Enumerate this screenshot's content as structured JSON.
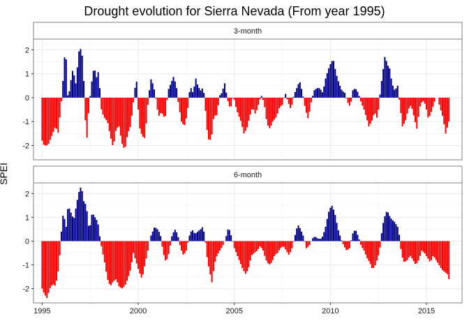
{
  "chart_data": {
    "type": "bar",
    "title": "Drought evolution for Sierra Nevada (From year 1995)",
    "xlabel": "",
    "ylabel": "SPEI",
    "xlim": [
      1994.55,
      2016.85
    ],
    "x_ticks": [
      1995,
      2000,
      2005,
      2010,
      2015
    ],
    "x_tick_labels": [
      "1995",
      "2000",
      "2005",
      "2010",
      "2015"
    ],
    "y_ticks": [
      -2,
      -1,
      0,
      1,
      2
    ],
    "y_tick_labels": [
      "-2",
      "-1",
      "0",
      "1",
      "2"
    ],
    "grid": true,
    "legend": "none",
    "colors": {
      "positive": "#00008B",
      "negative": "#FF0000"
    },
    "panels": [
      {
        "label": "3-month",
        "ylim": [
          -2.6,
          2.45
        ],
        "anchors": [
          [
            1995.0,
            -1.8
          ],
          [
            1995.1,
            -2.0
          ],
          [
            1995.3,
            -2.0
          ],
          [
            1995.5,
            -1.6
          ],
          [
            1995.7,
            -1.2
          ],
          [
            1995.85,
            -1.5
          ],
          [
            1995.95,
            -0.5
          ],
          [
            1996.05,
            0.2
          ],
          [
            1996.15,
            1.7
          ],
          [
            1996.25,
            1.6
          ],
          [
            1996.35,
            -0.2
          ],
          [
            1996.45,
            0.5
          ],
          [
            1996.6,
            1.2
          ],
          [
            1996.75,
            0.6
          ],
          [
            1996.95,
            2.2
          ],
          [
            1997.1,
            1.7
          ],
          [
            1997.2,
            0.2
          ],
          [
            1997.3,
            -2.1
          ],
          [
            1997.4,
            -0.8
          ],
          [
            1997.55,
            0.5
          ],
          [
            1997.7,
            1.3
          ],
          [
            1997.85,
            0.8
          ],
          [
            1997.95,
            1.2
          ],
          [
            1998.05,
            -0.4
          ],
          [
            1998.2,
            -0.8
          ],
          [
            1998.4,
            -1.0
          ],
          [
            1998.55,
            -1.6
          ],
          [
            1998.7,
            -2.1
          ],
          [
            1998.85,
            -1.3
          ],
          [
            1999.0,
            -1.2
          ],
          [
            1999.15,
            -1.9
          ],
          [
            1999.3,
            -2.2
          ],
          [
            1999.45,
            -1.5
          ],
          [
            1999.6,
            -1.2
          ],
          [
            1999.75,
            -0.2
          ],
          [
            1999.9,
            0.9
          ],
          [
            2000.05,
            -1.2
          ],
          [
            2000.2,
            -1.6
          ],
          [
            2000.35,
            -1.7
          ],
          [
            2000.5,
            -0.3
          ],
          [
            2000.65,
            0.8
          ],
          [
            2000.8,
            0.5
          ],
          [
            2000.95,
            -0.2
          ],
          [
            2001.05,
            -0.8
          ],
          [
            2001.2,
            -0.6
          ],
          [
            2001.4,
            -0.9
          ],
          [
            2001.55,
            0.3
          ],
          [
            2001.7,
            0.6
          ],
          [
            2001.85,
            0.9
          ],
          [
            2002.0,
            0.4
          ],
          [
            2002.1,
            -0.3
          ],
          [
            2002.25,
            -1.0
          ],
          [
            2002.4,
            -1.2
          ],
          [
            2002.55,
            -0.7
          ],
          [
            2002.7,
            0.5
          ],
          [
            2002.85,
            0.2
          ],
          [
            2003.0,
            0.8
          ],
          [
            2003.1,
            0.5
          ],
          [
            2003.25,
            0.3
          ],
          [
            2003.35,
            0.4
          ],
          [
            2003.45,
            0.1
          ],
          [
            2003.55,
            -1.2
          ],
          [
            2003.7,
            -1.9
          ],
          [
            2003.85,
            -1.5
          ],
          [
            2003.95,
            -0.6
          ],
          [
            2004.05,
            -0.9
          ],
          [
            2004.15,
            -0.4
          ],
          [
            2004.25,
            0.1
          ],
          [
            2004.35,
            0.2
          ],
          [
            2004.5,
            0.6
          ],
          [
            2004.65,
            -0.1
          ],
          [
            2004.8,
            -0.5
          ],
          [
            2004.95,
            0.1
          ],
          [
            2005.05,
            -0.3
          ],
          [
            2005.2,
            -0.7
          ],
          [
            2005.35,
            -1.0
          ],
          [
            2005.5,
            -1.5
          ],
          [
            2005.65,
            -1.3
          ],
          [
            2005.8,
            -0.8
          ],
          [
            2005.95,
            -0.4
          ],
          [
            2006.1,
            -0.7
          ],
          [
            2006.25,
            -0.3
          ],
          [
            2006.4,
            0.1
          ],
          [
            2006.55,
            -0.2
          ],
          [
            2006.7,
            -1.1
          ],
          [
            2006.85,
            -1.3
          ],
          [
            2007.0,
            -1.0
          ],
          [
            2007.2,
            -0.8
          ],
          [
            2007.35,
            -0.4
          ],
          [
            2007.5,
            -0.3
          ],
          [
            2007.65,
            0.2
          ],
          [
            2007.8,
            -0.2
          ],
          [
            2007.95,
            -0.5
          ],
          [
            2008.1,
            0.1
          ],
          [
            2008.25,
            0.4
          ],
          [
            2008.4,
            0.7
          ],
          [
            2008.55,
            0.2
          ],
          [
            2008.7,
            -0.5
          ],
          [
            2008.85,
            -0.9
          ],
          [
            2009.0,
            -0.2
          ],
          [
            2009.15,
            0.3
          ],
          [
            2009.3,
            0.4
          ],
          [
            2009.45,
            0.4
          ],
          [
            2009.6,
            0.2
          ],
          [
            2009.75,
            0.8
          ],
          [
            2009.9,
            1.2
          ],
          [
            2010.05,
            1.5
          ],
          [
            2010.15,
            1.6
          ],
          [
            2010.3,
            1.0
          ],
          [
            2010.45,
            0.6
          ],
          [
            2010.6,
            0.3
          ],
          [
            2010.75,
            0.2
          ],
          [
            2010.9,
            -0.2
          ],
          [
            2011.05,
            -0.4
          ],
          [
            2011.15,
            0.3
          ],
          [
            2011.3,
            0.4
          ],
          [
            2011.45,
            0.2
          ],
          [
            2011.6,
            -0.2
          ],
          [
            2011.75,
            -0.5
          ],
          [
            2011.9,
            -0.9
          ],
          [
            2012.0,
            -1.2
          ],
          [
            2012.15,
            -1.0
          ],
          [
            2012.3,
            -0.6
          ],
          [
            2012.45,
            -0.9
          ],
          [
            2012.55,
            -0.1
          ],
          [
            2012.65,
            0.6
          ],
          [
            2012.75,
            1.2
          ],
          [
            2012.85,
            1.8
          ],
          [
            2012.95,
            1.4
          ],
          [
            2013.1,
            1.2
          ],
          [
            2013.2,
            0.6
          ],
          [
            2013.35,
            0.3
          ],
          [
            2013.5,
            0.5
          ],
          [
            2013.6,
            -0.2
          ],
          [
            2013.75,
            -1.2
          ],
          [
            2013.9,
            -1.0
          ],
          [
            2014.05,
            -0.5
          ],
          [
            2014.2,
            -0.3
          ],
          [
            2014.35,
            -0.8
          ],
          [
            2014.5,
            -1.3
          ],
          [
            2014.65,
            -0.4
          ],
          [
            2014.8,
            -0.1
          ],
          [
            2014.95,
            -0.3
          ],
          [
            2015.1,
            -0.9
          ],
          [
            2015.25,
            -0.6
          ],
          [
            2015.4,
            -0.2
          ],
          [
            2015.55,
            0.1
          ],
          [
            2015.7,
            -0.4
          ],
          [
            2015.85,
            -0.8
          ],
          [
            2016.0,
            -1.5
          ],
          [
            2016.1,
            -1.2
          ],
          [
            2016.2,
            -0.9
          ]
        ]
      },
      {
        "label": "6-month",
        "ylim": [
          -2.6,
          2.45
        ],
        "anchors": [
          [
            1995.0,
            -2.0
          ],
          [
            1995.1,
            -2.2
          ],
          [
            1995.25,
            -2.4
          ],
          [
            1995.4,
            -2.0
          ],
          [
            1995.55,
            -1.8
          ],
          [
            1995.7,
            -1.9
          ],
          [
            1995.85,
            -1.2
          ],
          [
            1995.95,
            -0.3
          ],
          [
            1996.05,
            1.1
          ],
          [
            1996.15,
            1.0
          ],
          [
            1996.25,
            0.6
          ],
          [
            1996.35,
            1.5
          ],
          [
            1996.5,
            1.2
          ],
          [
            1996.65,
            0.9
          ],
          [
            1996.8,
            1.6
          ],
          [
            1996.95,
            2.2
          ],
          [
            1997.05,
            2.3
          ],
          [
            1997.15,
            1.7
          ],
          [
            1997.3,
            1.5
          ],
          [
            1997.45,
            0.4
          ],
          [
            1997.6,
            1.2
          ],
          [
            1997.75,
            1.0
          ],
          [
            1997.9,
            0.8
          ],
          [
            1998.0,
            0.2
          ],
          [
            1998.1,
            -0.3
          ],
          [
            1998.25,
            -0.9
          ],
          [
            1998.4,
            -1.6
          ],
          [
            1998.55,
            -1.9
          ],
          [
            1998.7,
            -1.7
          ],
          [
            1998.85,
            -1.6
          ],
          [
            1999.0,
            -1.9
          ],
          [
            1999.15,
            -2.0
          ],
          [
            1999.3,
            -1.9
          ],
          [
            1999.45,
            -1.6
          ],
          [
            1999.6,
            -1.2
          ],
          [
            1999.75,
            -0.5
          ],
          [
            1999.9,
            -0.9
          ],
          [
            2000.05,
            -1.3
          ],
          [
            2000.2,
            -1.6
          ],
          [
            2000.35,
            -1.0
          ],
          [
            2000.5,
            -0.4
          ],
          [
            2000.6,
            0.1
          ],
          [
            2000.7,
            0.3
          ],
          [
            2000.85,
            0.6
          ],
          [
            2001.0,
            0.5
          ],
          [
            2001.15,
            0.3
          ],
          [
            2001.3,
            -0.5
          ],
          [
            2001.45,
            -0.9
          ],
          [
            2001.6,
            -0.5
          ],
          [
            2001.75,
            0.2
          ],
          [
            2001.9,
            0.5
          ],
          [
            2002.05,
            0.3
          ],
          [
            2002.2,
            -0.3
          ],
          [
            2002.35,
            -0.6
          ],
          [
            2002.5,
            -0.4
          ],
          [
            2002.65,
            0.2
          ],
          [
            2002.8,
            0.5
          ],
          [
            2002.95,
            0.3
          ],
          [
            2003.1,
            0.4
          ],
          [
            2003.25,
            0.5
          ],
          [
            2003.35,
            0.6
          ],
          [
            2003.45,
            0.3
          ],
          [
            2003.6,
            -0.8
          ],
          [
            2003.75,
            -1.4
          ],
          [
            2003.85,
            -1.8
          ],
          [
            2003.95,
            -1.0
          ],
          [
            2004.1,
            -0.6
          ],
          [
            2004.25,
            -0.4
          ],
          [
            2004.4,
            -0.2
          ],
          [
            2004.55,
            0.1
          ],
          [
            2004.7,
            0.6
          ],
          [
            2004.85,
            0.2
          ],
          [
            2005.0,
            -0.3
          ],
          [
            2005.15,
            -0.6
          ],
          [
            2005.3,
            -0.9
          ],
          [
            2005.45,
            -1.2
          ],
          [
            2005.6,
            -1.4
          ],
          [
            2005.75,
            -1.1
          ],
          [
            2005.9,
            -0.6
          ],
          [
            2006.05,
            -0.5
          ],
          [
            2006.2,
            -0.4
          ],
          [
            2006.35,
            -0.2
          ],
          [
            2006.5,
            -0.4
          ],
          [
            2006.65,
            -0.8
          ],
          [
            2006.8,
            -1.0
          ],
          [
            2006.95,
            -0.9
          ],
          [
            2007.1,
            -0.6
          ],
          [
            2007.25,
            -0.5
          ],
          [
            2007.4,
            -0.3
          ],
          [
            2007.55,
            -0.2
          ],
          [
            2007.7,
            -0.4
          ],
          [
            2007.85,
            -0.6
          ],
          [
            2008.0,
            -0.3
          ],
          [
            2008.15,
            0.2
          ],
          [
            2008.3,
            0.7
          ],
          [
            2008.45,
            0.5
          ],
          [
            2008.6,
            0.2
          ],
          [
            2008.75,
            -0.3
          ],
          [
            2008.9,
            -0.2
          ],
          [
            2009.05,
            0.1
          ],
          [
            2009.2,
            0.2
          ],
          [
            2009.35,
            0.1
          ],
          [
            2009.5,
            0.1
          ],
          [
            2009.6,
            0.2
          ],
          [
            2009.75,
            0.6
          ],
          [
            2009.9,
            1.2
          ],
          [
            2010.0,
            1.4
          ],
          [
            2010.1,
            1.5
          ],
          [
            2010.25,
            1.1
          ],
          [
            2010.4,
            0.5
          ],
          [
            2010.55,
            0.1
          ],
          [
            2010.7,
            -0.2
          ],
          [
            2010.85,
            -0.4
          ],
          [
            2011.0,
            -0.3
          ],
          [
            2011.15,
            0.3
          ],
          [
            2011.3,
            0.5
          ],
          [
            2011.45,
            0.2
          ],
          [
            2011.6,
            -0.2
          ],
          [
            2011.75,
            -0.4
          ],
          [
            2011.9,
            -0.7
          ],
          [
            2012.05,
            -0.9
          ],
          [
            2012.2,
            -1.2
          ],
          [
            2012.35,
            -1.0
          ],
          [
            2012.5,
            -0.6
          ],
          [
            2012.6,
            -0.2
          ],
          [
            2012.7,
            0.6
          ],
          [
            2012.85,
            1.1
          ],
          [
            2012.95,
            1.3
          ],
          [
            2013.05,
            1.1
          ],
          [
            2013.2,
            0.9
          ],
          [
            2013.35,
            0.8
          ],
          [
            2013.5,
            0.6
          ],
          [
            2013.6,
            0.2
          ],
          [
            2013.7,
            -0.6
          ],
          [
            2013.85,
            -0.9
          ],
          [
            2014.0,
            -0.8
          ],
          [
            2014.15,
            -0.6
          ],
          [
            2014.3,
            -0.8
          ],
          [
            2014.45,
            -1.0
          ],
          [
            2014.6,
            -0.8
          ],
          [
            2014.75,
            -0.4
          ],
          [
            2014.9,
            -0.5
          ],
          [
            2015.05,
            -0.7
          ],
          [
            2015.2,
            -0.9
          ],
          [
            2015.35,
            -0.6
          ],
          [
            2015.5,
            -0.8
          ],
          [
            2015.65,
            -1.0
          ],
          [
            2015.8,
            -1.2
          ],
          [
            2015.95,
            -1.3
          ],
          [
            2016.1,
            -1.4
          ],
          [
            2016.2,
            -1.7
          ]
        ]
      }
    ]
  }
}
